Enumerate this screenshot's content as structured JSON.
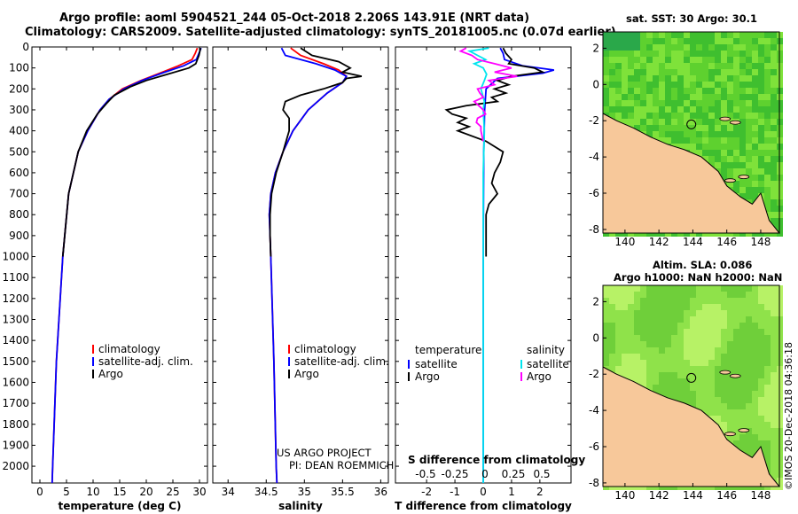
{
  "header": {
    "line1": "Argo profile: aoml 5904521_244 05-Oct-2018 2.206S 143.91E (NRT data)",
    "line2": "Climatology: CARS2009. Satellite-adjusted climatology: synTS_20181005.nc (0.07d earlier)"
  },
  "colors": {
    "climatology": "#ff0000",
    "satellite": "#0000ff",
    "argo": "#000000",
    "sal_satellite": "#00e5ee",
    "sal_argo": "#ff00ff",
    "land": "#f7c89a",
    "sea": "#2fbf2f"
  },
  "depth_axis": {
    "ticks": [
      0,
      100,
      200,
      300,
      400,
      500,
      600,
      700,
      800,
      900,
      1000,
      1100,
      1200,
      1300,
      1400,
      1500,
      1600,
      1700,
      1800,
      1900,
      2000
    ]
  },
  "chart_data": [
    {
      "type": "line",
      "id": "temperature",
      "xlabel": "temperature (deg C)",
      "ylabel": "",
      "xlim": [
        -1.5,
        31.5
      ],
      "ylim": [
        2080,
        0
      ],
      "xticks": [
        0,
        5,
        10,
        15,
        20,
        25,
        30
      ],
      "legend": [
        "climatology",
        "satellite-adj. clim.",
        "Argo"
      ],
      "series": [
        {
          "name": "climatology",
          "depth": [
            5,
            30,
            60,
            90,
            120,
            160,
            200,
            250,
            300,
            400,
            500,
            700,
            1000,
            1500,
            2000,
            2080
          ],
          "values": [
            29.6,
            29.2,
            28.6,
            26,
            23,
            19,
            15.5,
            13,
            11.3,
            9,
            7.2,
            5.4,
            4.3,
            3.1,
            2.4,
            2.3
          ]
        },
        {
          "name": "satellite-adj. clim.",
          "depth": [
            5,
            30,
            60,
            90,
            120,
            160,
            200,
            250,
            300,
            400,
            500,
            700,
            1000,
            1500,
            2000,
            2080
          ],
          "values": [
            30.3,
            29.9,
            29.4,
            27,
            23.5,
            19.2,
            15.8,
            13,
            11.3,
            9,
            7.2,
            5.4,
            4.3,
            3.1,
            2.4,
            2.3
          ]
        },
        {
          "name": "Argo",
          "depth": [
            5,
            40,
            80,
            100,
            130,
            160,
            190,
            230,
            270,
            320,
            400,
            500,
            700,
            1000
          ],
          "values": [
            30.2,
            29.9,
            29.3,
            28,
            24,
            20,
            17,
            14,
            12.5,
            10.8,
            8.8,
            7.2,
            5.4,
            4.3
          ]
        }
      ]
    },
    {
      "type": "line",
      "id": "salinity",
      "xlabel": "salinity",
      "ylabel": "",
      "xlim": [
        33.8,
        36.1
      ],
      "ylim": [
        2080,
        0
      ],
      "xticks": [
        34,
        34.5,
        35,
        35.5,
        36
      ],
      "legend": [
        "climatology",
        "satellite-adj. clim.",
        "Argo"
      ],
      "series": [
        {
          "name": "climatology",
          "depth": [
            5,
            40,
            80,
            110,
            140,
            170,
            220,
            300,
            400,
            500,
            600,
            700,
            800,
            900,
            1000,
            1500,
            2000,
            2080
          ],
          "values": [
            34.82,
            34.95,
            35.25,
            35.45,
            35.55,
            35.5,
            35.3,
            35.05,
            34.85,
            34.72,
            34.62,
            34.56,
            34.54,
            34.55,
            34.56,
            34.6,
            34.63,
            34.64
          ]
        },
        {
          "name": "satellite-adj. clim.",
          "depth": [
            5,
            40,
            80,
            110,
            140,
            170,
            220,
            300,
            400,
            500,
            600,
            700,
            800,
            900,
            1000,
            1500,
            2000,
            2080
          ],
          "values": [
            34.7,
            34.75,
            35.15,
            35.4,
            35.55,
            35.5,
            35.3,
            35.05,
            34.85,
            34.72,
            34.62,
            34.56,
            34.54,
            34.55,
            34.56,
            34.6,
            34.63,
            34.64
          ]
        },
        {
          "name": "Argo",
          "depth": [
            5,
            40,
            70,
            100,
            120,
            140,
            150,
            170,
            200,
            230,
            260,
            300,
            340,
            400,
            500,
            600,
            700,
            800,
            900,
            1000
          ],
          "values": [
            34.95,
            35.1,
            35.45,
            35.6,
            35.5,
            35.75,
            35.55,
            35.5,
            35.25,
            34.95,
            34.75,
            34.72,
            34.8,
            34.8,
            34.72,
            34.63,
            34.57,
            34.55,
            34.55,
            34.56
          ]
        }
      ]
    },
    {
      "type": "line",
      "id": "difference",
      "xlabel": "T difference from climatology",
      "xlabel2": "S difference from climatology",
      "xlim": [
        -3.1,
        3.1
      ],
      "ylim": [
        2080,
        0
      ],
      "xticks": [
        -2,
        -1,
        0,
        1,
        2
      ],
      "xticks2": [
        "-0.5",
        "-0.25",
        "0",
        "0.25",
        "0.5"
      ],
      "legend_left_title": "temperature",
      "legend_right_title": "salinity",
      "legend_left": [
        "satellite",
        "Argo"
      ],
      "legend_right": [
        "satellite",
        "Argo"
      ],
      "series": [
        {
          "name": "T satellite",
          "depth": [
            5,
            30,
            60,
            90,
            110,
            125,
            150,
            200,
            300,
            500,
            1000,
            2000,
            2080
          ],
          "values": [
            0.6,
            0.7,
            0.75,
            1.4,
            2.5,
            2.1,
            0.5,
            0.1,
            0.05,
            0.02,
            0,
            0,
            0
          ]
        },
        {
          "name": "T Argo",
          "depth": [
            5,
            30,
            60,
            80,
            100,
            120,
            140,
            160,
            180,
            200,
            220,
            240,
            260,
            280,
            300,
            320,
            340,
            360,
            380,
            400,
            450,
            500,
            550,
            600,
            650,
            700,
            750,
            800,
            900,
            1000
          ],
          "values": [
            0.7,
            0.8,
            1.0,
            0.9,
            1.8,
            2.1,
            1.0,
            0.5,
            0.9,
            0.4,
            0.8,
            0.3,
            0.5,
            -0.6,
            -1.3,
            -1.1,
            -0.6,
            -0.9,
            -0.5,
            -0.9,
            0.1,
            0.7,
            0.6,
            0.4,
            0.3,
            0.5,
            0.2,
            0.1,
            0.1,
            0.1
          ]
        },
        {
          "name": "S satellite",
          "depth": [
            5,
            20,
            40,
            60,
            80,
            100,
            130,
            160,
            200,
            260,
            300,
            400,
            600,
            1000,
            2000,
            2080
          ],
          "values": [
            0.05,
            -0.12,
            -0.05,
            0.02,
            -0.08,
            0.0,
            0.03,
            0.01,
            -0.02,
            0.01,
            0.0,
            0.01,
            0.0,
            0.0,
            0.0,
            0.0
          ]
        },
        {
          "name": "S Argo",
          "depth": [
            5,
            20,
            40,
            60,
            80,
            100,
            120,
            140,
            160,
            180,
            200,
            220,
            240,
            260,
            280,
            300,
            320,
            340,
            360,
            380,
            400,
            450
          ],
          "values": [
            -0.15,
            -0.2,
            -0.1,
            -0.05,
            0.1,
            0.25,
            0.1,
            0.3,
            0.05,
            0.1,
            -0.05,
            -0.03,
            0.0,
            -0.08,
            -0.04,
            0.0,
            0.02,
            -0.05,
            -0.06,
            -0.02,
            -0.02,
            0.0
          ]
        }
      ]
    }
  ],
  "credit": {
    "line1": "US ARGO PROJECT",
    "line2": "PI: DEAN ROEMMICH"
  },
  "maps": [
    {
      "title": "sat. SST: 30 Argo: 30.1",
      "xticks": [
        "140",
        "142",
        "144",
        "146",
        "148"
      ],
      "yticks": [
        "2",
        "0",
        "-2",
        "-4",
        "-6",
        "-8"
      ]
    },
    {
      "title1": "Altim. SLA: 0.086",
      "title2": "Argo h1000: NaN h2000: NaN",
      "xticks": [
        "140",
        "142",
        "144",
        "146",
        "148"
      ],
      "yticks": [
        "2",
        "0",
        "-2",
        "-4",
        "-6",
        "-8"
      ]
    }
  ],
  "footer": {
    "stamp": "©IMOS 20-Dec-2018 04:36:18"
  }
}
